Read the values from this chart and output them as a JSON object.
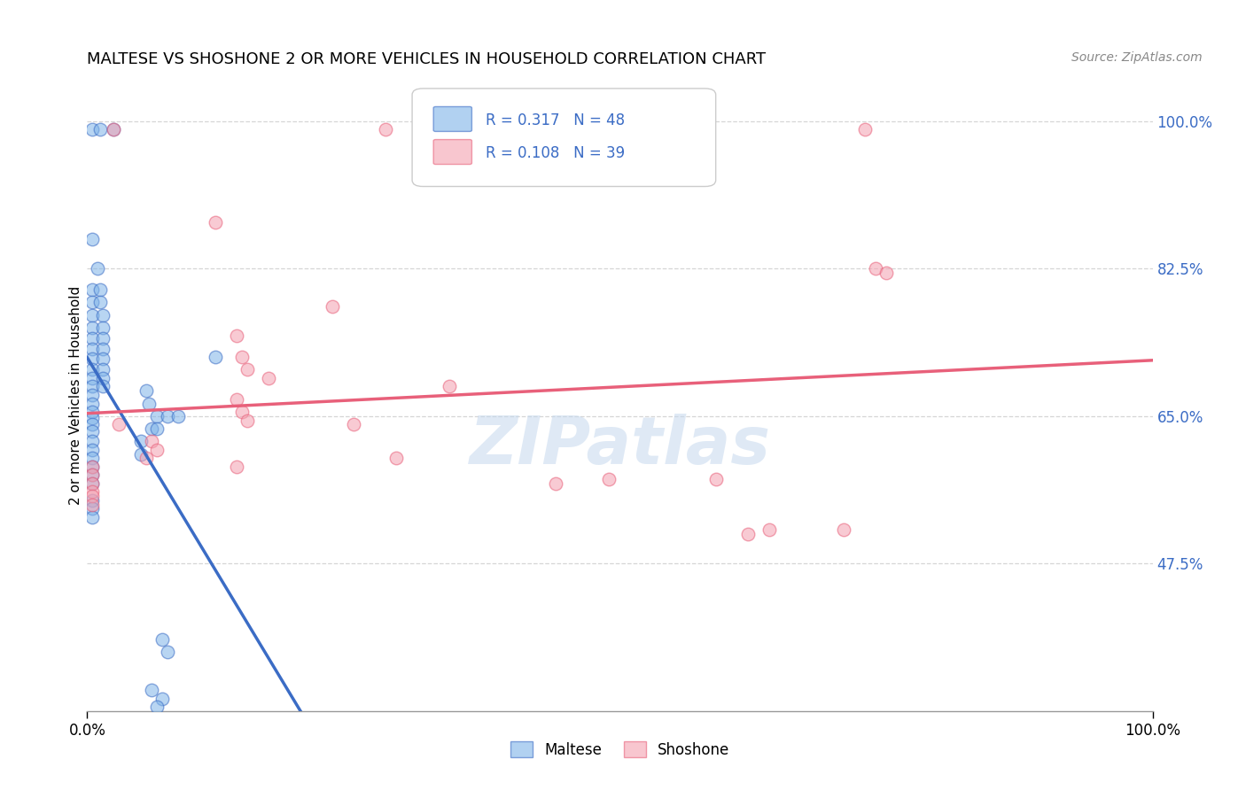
{
  "title": "MALTESE VS SHOSHONE 2 OR MORE VEHICLES IN HOUSEHOLD CORRELATION CHART",
  "source": "Source: ZipAtlas.com",
  "ylabel": "2 or more Vehicles in Household",
  "xlim": [
    0.0,
    100.0
  ],
  "ylim": [
    30.0,
    105.0
  ],
  "ytick_labels_right": [
    "47.5%",
    "65.0%",
    "82.5%",
    "100.0%"
  ],
  "ytick_positions_right": [
    47.5,
    65.0,
    82.5,
    100.0
  ],
  "maltese_color": "#7EB3E8",
  "shoshone_color": "#F4A0B0",
  "maltese_line_color": "#3B6CC5",
  "shoshone_line_color": "#E8607A",
  "maltese_scatter": [
    [
      0.5,
      99.0
    ],
    [
      1.2,
      99.0
    ],
    [
      2.5,
      99.0
    ],
    [
      0.5,
      86.0
    ],
    [
      1.0,
      82.5
    ],
    [
      0.5,
      80.0
    ],
    [
      1.2,
      80.0
    ],
    [
      0.5,
      78.5
    ],
    [
      1.2,
      78.5
    ],
    [
      0.5,
      77.0
    ],
    [
      1.5,
      77.0
    ],
    [
      0.5,
      75.5
    ],
    [
      1.5,
      75.5
    ],
    [
      0.5,
      74.2
    ],
    [
      1.5,
      74.2
    ],
    [
      0.5,
      73.0
    ],
    [
      1.5,
      73.0
    ],
    [
      0.5,
      71.8
    ],
    [
      1.5,
      71.8
    ],
    [
      0.5,
      70.5
    ],
    [
      1.5,
      70.5
    ],
    [
      0.5,
      69.5
    ],
    [
      1.5,
      69.5
    ],
    [
      0.5,
      68.5
    ],
    [
      1.5,
      68.5
    ],
    [
      0.5,
      67.5
    ],
    [
      0.5,
      66.5
    ],
    [
      0.5,
      65.5
    ],
    [
      0.5,
      64.8
    ],
    [
      0.5,
      64.0
    ],
    [
      0.5,
      63.2
    ],
    [
      0.5,
      62.0
    ],
    [
      0.5,
      61.0
    ],
    [
      0.5,
      60.0
    ],
    [
      0.5,
      59.0
    ],
    [
      0.5,
      58.0
    ],
    [
      0.5,
      57.0
    ],
    [
      0.5,
      55.0
    ],
    [
      0.5,
      54.0
    ],
    [
      0.5,
      53.0
    ],
    [
      5.5,
      68.0
    ],
    [
      5.8,
      66.5
    ],
    [
      6.5,
      65.0
    ],
    [
      7.5,
      65.0
    ],
    [
      8.5,
      65.0
    ],
    [
      6.0,
      63.5
    ],
    [
      6.5,
      63.5
    ],
    [
      5.0,
      62.0
    ],
    [
      5.0,
      60.5
    ],
    [
      12.0,
      72.0
    ],
    [
      7.0,
      38.5
    ],
    [
      7.5,
      37.0
    ],
    [
      6.0,
      32.5
    ],
    [
      7.0,
      31.5
    ],
    [
      6.5,
      30.5
    ]
  ],
  "shoshone_scatter": [
    [
      2.5,
      99.0
    ],
    [
      28.0,
      99.0
    ],
    [
      73.0,
      99.0
    ],
    [
      12.0,
      88.0
    ],
    [
      23.0,
      78.0
    ],
    [
      14.0,
      74.5
    ],
    [
      14.5,
      72.0
    ],
    [
      15.0,
      70.5
    ],
    [
      17.0,
      69.5
    ],
    [
      34.0,
      68.5
    ],
    [
      14.0,
      67.0
    ],
    [
      14.5,
      65.5
    ],
    [
      15.0,
      64.5
    ],
    [
      3.0,
      64.0
    ],
    [
      25.0,
      64.0
    ],
    [
      6.0,
      62.0
    ],
    [
      6.5,
      61.0
    ],
    [
      5.5,
      60.0
    ],
    [
      29.0,
      60.0
    ],
    [
      14.0,
      59.0
    ],
    [
      0.5,
      59.0
    ],
    [
      0.5,
      58.0
    ],
    [
      0.5,
      57.0
    ],
    [
      0.5,
      56.0
    ],
    [
      0.5,
      55.5
    ],
    [
      0.5,
      54.5
    ],
    [
      59.0,
      57.5
    ],
    [
      64.0,
      51.5
    ],
    [
      74.0,
      82.5
    ],
    [
      44.0,
      57.0
    ],
    [
      75.0,
      82.0
    ],
    [
      49.0,
      57.5
    ],
    [
      62.0,
      51.0
    ],
    [
      71.0,
      51.5
    ]
  ],
  "watermark_text": "ZIPatlas",
  "background_color": "#FFFFFF",
  "grid_color": "#BBBBBB",
  "grid_alpha": 0.6
}
